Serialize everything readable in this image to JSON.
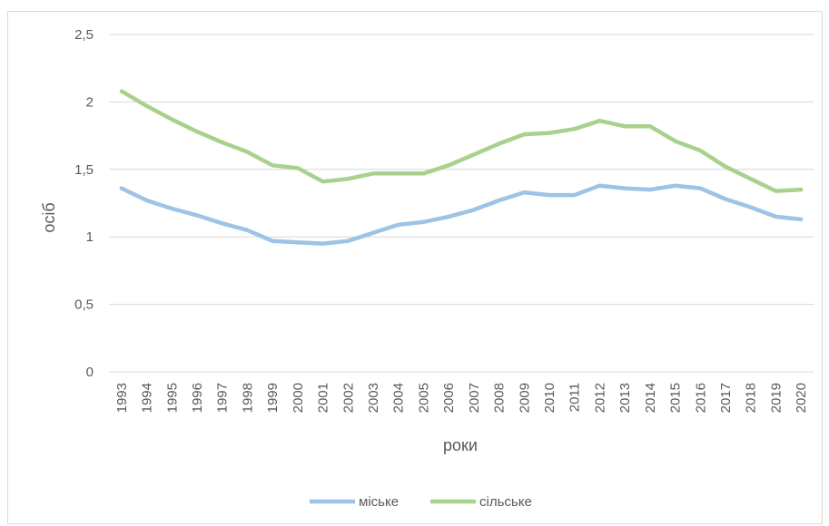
{
  "chart_data": {
    "type": "line",
    "title": "",
    "xlabel": "роки",
    "ylabel": "осіб",
    "ylim": [
      0,
      2.5
    ],
    "y_ticks": [
      "0",
      "0,5",
      "1",
      "1,5",
      "2",
      "2,5"
    ],
    "y_tick_values": [
      0,
      0.5,
      1,
      1.5,
      2,
      2.5
    ],
    "grid": true,
    "legend_position": "bottom",
    "x": [
      "1993",
      "1994",
      "1995",
      "1996",
      "1997",
      "1998",
      "1999",
      "2000",
      "2001",
      "2002",
      "2003",
      "2004",
      "2005",
      "2006",
      "2007",
      "2008",
      "2009",
      "2010",
      "2011",
      "2012",
      "2013",
      "2014",
      "2015",
      "2016",
      "2017",
      "2018",
      "2019",
      "2020"
    ],
    "series": [
      {
        "name": "міське",
        "color": "#9dc3e6",
        "values": [
          1.36,
          1.27,
          1.21,
          1.16,
          1.1,
          1.05,
          0.97,
          0.96,
          0.95,
          0.97,
          1.03,
          1.09,
          1.11,
          1.15,
          1.2,
          1.27,
          1.33,
          1.31,
          1.31,
          1.38,
          1.36,
          1.35,
          1.38,
          1.36,
          1.28,
          1.22,
          1.15,
          1.13
        ]
      },
      {
        "name": "сільське",
        "color": "#a9d18e",
        "values": [
          2.08,
          1.97,
          1.87,
          1.78,
          1.7,
          1.63,
          1.53,
          1.51,
          1.41,
          1.43,
          1.47,
          1.47,
          1.47,
          1.53,
          1.61,
          1.69,
          1.76,
          1.77,
          1.8,
          1.86,
          1.82,
          1.82,
          1.71,
          1.64,
          1.52,
          1.43,
          1.34,
          1.35
        ]
      }
    ]
  }
}
